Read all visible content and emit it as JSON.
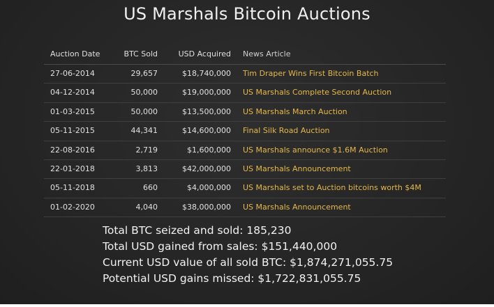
{
  "title": "US Marshals Bitcoin Auctions",
  "colors": {
    "link": "#e6b84a",
    "background": "#262626",
    "text": "#e8e8e8"
  },
  "table": {
    "headers": [
      "Auction Date",
      "BTC Sold",
      "USD Acquired",
      "News Article"
    ],
    "rows": [
      [
        "27-06-2014",
        "29,657",
        "$18,740,000",
        "Tim Draper Wins First Bitcoin Batch"
      ],
      [
        "04-12-2014",
        "50,000",
        "$19,000,000",
        "US Marshals Complete Second Auction"
      ],
      [
        "01-03-2015",
        "50,000",
        "$13,500,000",
        "US Marshals March Auction"
      ],
      [
        "05-11-2015",
        "44,341",
        "$14,600,000",
        "Final Silk Road Auction"
      ],
      [
        "22-08-2016",
        "2,719",
        "$1,600,000",
        "US Marshals announce $1.6M Auction"
      ],
      [
        "22-01-2018",
        "3,813",
        "$42,000,000",
        "US Marshals Announcement"
      ],
      [
        "05-11-2018",
        "660",
        "$4,000,000",
        "US Marshals set to Auction bitcoins worth $4M"
      ],
      [
        "01-02-2020",
        "4,040",
        "$38,000,000",
        "US Marshals Announcement"
      ]
    ]
  },
  "summary": {
    "total_btc": "Total BTC seized and sold: 185,230",
    "total_usd": "Total USD gained from sales: $151,440,000",
    "current_value": "Current USD value of all sold BTC: $1,874,271,055.75",
    "missed_gains": "Potential USD gains missed: $1,722,831,055.75"
  }
}
